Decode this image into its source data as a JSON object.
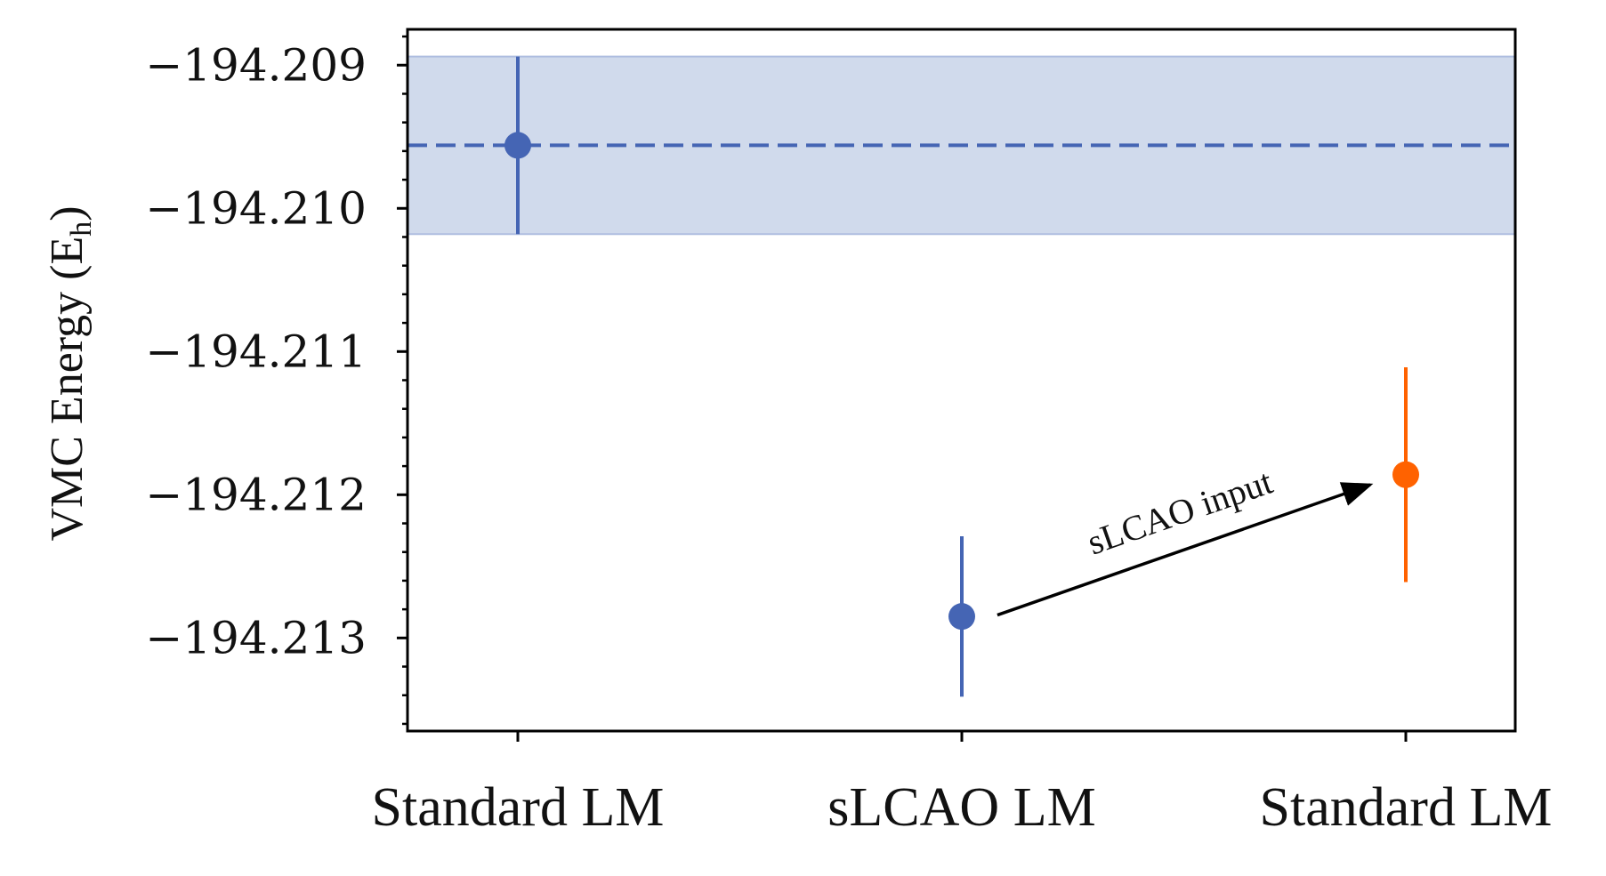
{
  "chart_data": {
    "type": "scatter",
    "ylabel": "VMC Energy (E",
    "ylabel_subscript": "h",
    "ylabel_close": ")",
    "xlabel": "",
    "title": "",
    "categories": [
      "Standard LM",
      "sLCAO LM",
      "Standard LM"
    ],
    "ylim": [
      -194.21365,
      -194.20875
    ],
    "yticks": [
      -194.209,
      -194.21,
      -194.211,
      -194.212,
      -194.213
    ],
    "ytick_labels": [
      "−194.209",
      "−194.210",
      "−194.211",
      "−194.212",
      "−194.213"
    ],
    "points": [
      {
        "category_index": 0,
        "y": -194.20956,
        "yerr": 0.00062,
        "color": "#4565b4"
      },
      {
        "category_index": 1,
        "y": -194.21285,
        "yerr": 0.00056,
        "color": "#4565b4"
      },
      {
        "category_index": 2,
        "y": -194.21186,
        "yerr": 0.00075,
        "color": "#ff6200"
      }
    ],
    "reference": {
      "y": -194.20956,
      "band": [
        -194.21018,
        -194.20894
      ],
      "line_color": "#4565b4",
      "band_color": "#d0daec"
    },
    "annotation": {
      "text": "sLCAO input",
      "from": {
        "category_index": 1.08,
        "y": -194.21284
      },
      "to": {
        "category_index": 1.92,
        "y": -194.21193
      }
    },
    "grid": false,
    "legend": "none"
  }
}
